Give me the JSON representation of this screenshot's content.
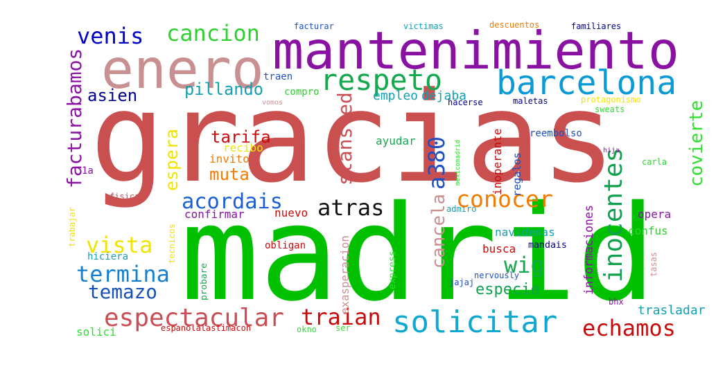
{
  "words": [
    {
      "text": "gracias",
      "color": "#c9504f"
    },
    {
      "text": "madrid",
      "color": "#00c000"
    },
    {
      "text": "mantenimiento",
      "color": "#8a12a3"
    },
    {
      "text": "enero",
      "color": "#c89090"
    },
    {
      "text": "barcelona",
      "color": "#0a9ad6"
    },
    {
      "text": "respeto",
      "color": "#14a84f"
    },
    {
      "text": "solicitar",
      "color": "#10a8d0"
    },
    {
      "text": "espectacular",
      "color": "#c94f55"
    },
    {
      "text": "inocentes",
      "color": "#10a04f"
    },
    {
      "text": "conocer",
      "color": "#f47a00"
    },
    {
      "text": "venis",
      "color": "#0000c8"
    },
    {
      "text": "cancion",
      "color": "#30d030"
    },
    {
      "text": "acordais",
      "color": "#1b5fd8"
    },
    {
      "text": "atras",
      "color": "#111111"
    },
    {
      "text": "echamos",
      "color": "#c90a0a"
    },
    {
      "text": "traian",
      "color": "#c90a0a"
    },
    {
      "text": "termina",
      "color": "#1480d0"
    },
    {
      "text": "temazo",
      "color": "#1450b8"
    },
    {
      "text": "vista",
      "color": "#f0e400"
    },
    {
      "text": "wig",
      "color": "#14a84f"
    },
    {
      "text": "a380",
      "color": "#2050c0"
    },
    {
      "text": "pillando",
      "color": "#14a0b0"
    },
    {
      "text": "facturabamos",
      "color": "#8a12a3"
    },
    {
      "text": "asien",
      "color": "#000090"
    },
    {
      "text": "tarifa",
      "color": "#c90a0a"
    },
    {
      "text": "espera",
      "color": "#f0e400"
    },
    {
      "text": "stansted",
      "color": "#c94f55"
    },
    {
      "text": "muta",
      "color": "#f47a00"
    },
    {
      "text": "cancela",
      "color": "#c89090"
    },
    {
      "text": "covierte",
      "color": "#30e030"
    },
    {
      "text": "especie",
      "color": "#10a04f"
    },
    {
      "text": "trasladar",
      "color": "#14a0b0"
    },
    {
      "text": "empleo",
      "color": "#14a0b0"
    },
    {
      "text": "dejaba",
      "color": "#14a0b0"
    },
    {
      "text": "ayudar",
      "color": "#14a84f"
    },
    {
      "text": "recibo",
      "color": "#f0e400"
    },
    {
      "text": "invito",
      "color": "#f47a00"
    },
    {
      "text": "confirmar",
      "color": "#8a12a3"
    },
    {
      "text": "nuevo",
      "color": "#c90a0a"
    },
    {
      "text": "obligan",
      "color": "#c90a0a"
    },
    {
      "text": "busca",
      "color": "#c90a0a"
    },
    {
      "text": "mandais",
      "color": "#000090"
    },
    {
      "text": "informaciones",
      "color": "#8a12a3"
    },
    {
      "text": "opera",
      "color": "#8a12a3"
    },
    {
      "text": "confus",
      "color": "#30d030"
    },
    {
      "text": "navidenas",
      "color": "#14a0b0"
    },
    {
      "text": "regalos",
      "color": "#2050c0"
    },
    {
      "text": "inoperante",
      "color": "#c90a0a"
    },
    {
      "text": "reembolso",
      "color": "#2050c0"
    },
    {
      "text": "compro",
      "color": "#30d030"
    },
    {
      "text": "traen",
      "color": "#2050c0"
    },
    {
      "text": "facturar",
      "color": "#2050c0"
    },
    {
      "text": "victimas",
      "color": "#14a0b0"
    },
    {
      "text": "descuentos",
      "color": "#f47a00"
    },
    {
      "text": "familiares",
      "color": "#000090"
    },
    {
      "text": "maletas",
      "color": "#000090"
    },
    {
      "text": "protagonismo",
      "color": "#f0e400"
    },
    {
      "text": "sweats",
      "color": "#30e030"
    },
    {
      "text": "hacerse",
      "color": "#000090"
    },
    {
      "text": "mexicomadrid",
      "color": "#30e030"
    },
    {
      "text": "hija",
      "color": "#8a12a3"
    },
    {
      "text": "carla",
      "color": "#30d030"
    },
    {
      "text": "admiro",
      "color": "#14a0b0"
    },
    {
      "text": "trabajar",
      "color": "#f0e400"
    },
    {
      "text": "fisica",
      "color": "#c94f55"
    },
    {
      "text": "tecnicos",
      "color": "#f0e400"
    },
    {
      "text": "hiciera",
      "color": "#14a0b0"
    },
    {
      "text": "probare",
      "color": "#14a84f"
    },
    {
      "text": "exasperacion",
      "color": "#c89090"
    },
    {
      "text": "express",
      "color": "#30e030"
    },
    {
      "text": "jajaj",
      "color": "#2050c0"
    },
    {
      "text": "nervously",
      "color": "#2050c0"
    },
    {
      "text": "tasas",
      "color": "#c89090"
    },
    {
      "text": "bhx",
      "color": "#8a12a3"
    },
    {
      "text": "solici",
      "color": "#30e030"
    },
    {
      "text": "espanolalastimacon",
      "color": "#c90a0a"
    },
    {
      "text": "okno",
      "color": "#30e030"
    },
    {
      "text": "ser",
      "color": "#30e030"
    },
    {
      "text": "vomos",
      "color": "#c89090"
    },
    {
      "text": "1a",
      "color": "#8a12a3"
    }
  ]
}
